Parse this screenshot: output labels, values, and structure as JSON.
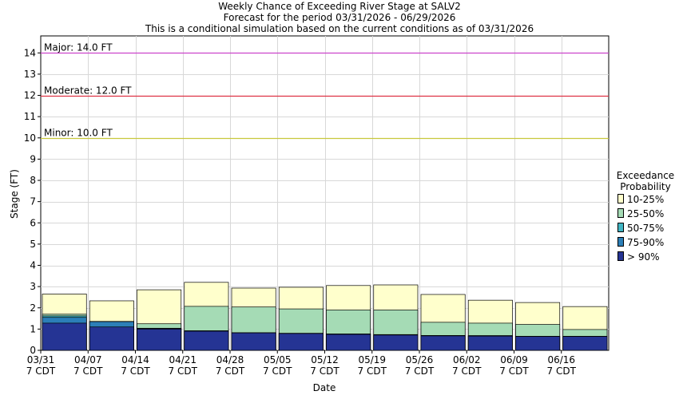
{
  "chart_data": {
    "type": "bar",
    "title": "Weekly Chance of Exceeding River Stage at SALV2",
    "subtitle1": "Forecast for the period 03/31/2026 - 06/29/2026",
    "subtitle2": "This is a conditional simulation based on the current conditions as of 03/31/2026",
    "xlabel": "Date",
    "ylabel": "Stage (FT)",
    "ylim": [
      0,
      14.8
    ],
    "yticks": [
      "0",
      "1",
      "2",
      "3",
      "4",
      "5",
      "6",
      "7",
      "8",
      "9",
      "10",
      "11",
      "12",
      "13",
      "14"
    ],
    "xticks": [
      {
        "date": "03/31",
        "tz": "7 CDT"
      },
      {
        "date": "04/07",
        "tz": "7 CDT"
      },
      {
        "date": "04/14",
        "tz": "7 CDT"
      },
      {
        "date": "04/21",
        "tz": "7 CDT"
      },
      {
        "date": "04/28",
        "tz": "7 CDT"
      },
      {
        "date": "05/05",
        "tz": "7 CDT"
      },
      {
        "date": "05/12",
        "tz": "7 CDT"
      },
      {
        "date": "05/19",
        "tz": "7 CDT"
      },
      {
        "date": "05/26",
        "tz": "7 CDT"
      },
      {
        "date": "06/02",
        "tz": "7 CDT"
      },
      {
        "date": "06/09",
        "tz": "7 CDT"
      },
      {
        "date": "06/16",
        "tz": "7 CDT"
      }
    ],
    "flood_levels": [
      {
        "label": "Major: 14.0 FT",
        "value": 14.0,
        "color": "#cc44cc"
      },
      {
        "label": "Moderate: 12.0 FT",
        "value": 12.0,
        "color": "#dd3344"
      },
      {
        "label": "Minor: 10.0 FT",
        "value": 10.0,
        "color": "#c8c83c"
      }
    ],
    "legend_title": [
      "Exceedance",
      "Probability"
    ],
    "legend_position": "right",
    "series": [
      {
        "name": "10-25%",
        "color": "#ffffcc",
        "values": [
          2.65,
          2.33,
          2.85,
          3.2,
          2.93,
          2.97,
          3.05,
          3.08,
          2.63,
          2.36,
          2.25,
          2.06
        ]
      },
      {
        "name": "25-50%",
        "color": "#a5dbb5",
        "values": [
          1.7,
          1.36,
          1.25,
          2.07,
          2.04,
          1.95,
          1.9,
          1.9,
          1.32,
          1.28,
          1.22,
          0.98
        ]
      },
      {
        "name": "50-75%",
        "color": "#41b6c4",
        "values": [
          1.62,
          1.36,
          1.04,
          0.92,
          0.83,
          0.8,
          0.77,
          0.74,
          0.7,
          0.69,
          0.66,
          0.66
        ]
      },
      {
        "name": "75-90%",
        "color": "#2c7fb8",
        "values": [
          1.55,
          1.35,
          1.03,
          0.92,
          0.83,
          0.8,
          0.77,
          0.74,
          0.7,
          0.69,
          0.66,
          0.66
        ]
      },
      {
        "name": "> 90%",
        "color": "#253494",
        "values": [
          1.28,
          1.1,
          1.0,
          0.9,
          0.82,
          0.79,
          0.75,
          0.72,
          0.68,
          0.67,
          0.65,
          0.65
        ]
      }
    ]
  }
}
